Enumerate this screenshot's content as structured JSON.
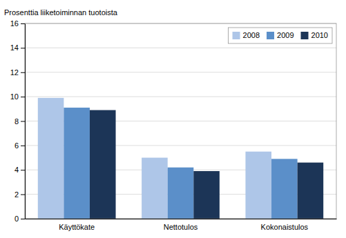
{
  "chart_data": {
    "type": "bar",
    "ylabel": "Prosenttia liiketoiminnan tuotoista",
    "categories": [
      "Käyttökate",
      "Nettotulos",
      "Kokonaistulos"
    ],
    "series": [
      {
        "name": "2008",
        "color": "#aec6e8",
        "values": [
          9.9,
          5.0,
          5.5
        ]
      },
      {
        "name": "2009",
        "color": "#5b8fc9",
        "values": [
          9.1,
          4.2,
          4.9
        ]
      },
      {
        "name": "2010",
        "color": "#1c3557",
        "values": [
          8.9,
          3.9,
          4.6
        ]
      }
    ],
    "ylim": [
      0,
      16
    ],
    "yticks": [
      0,
      2,
      4,
      6,
      8,
      10,
      12,
      14,
      16
    ],
    "grid": true,
    "legend": "upper right"
  }
}
